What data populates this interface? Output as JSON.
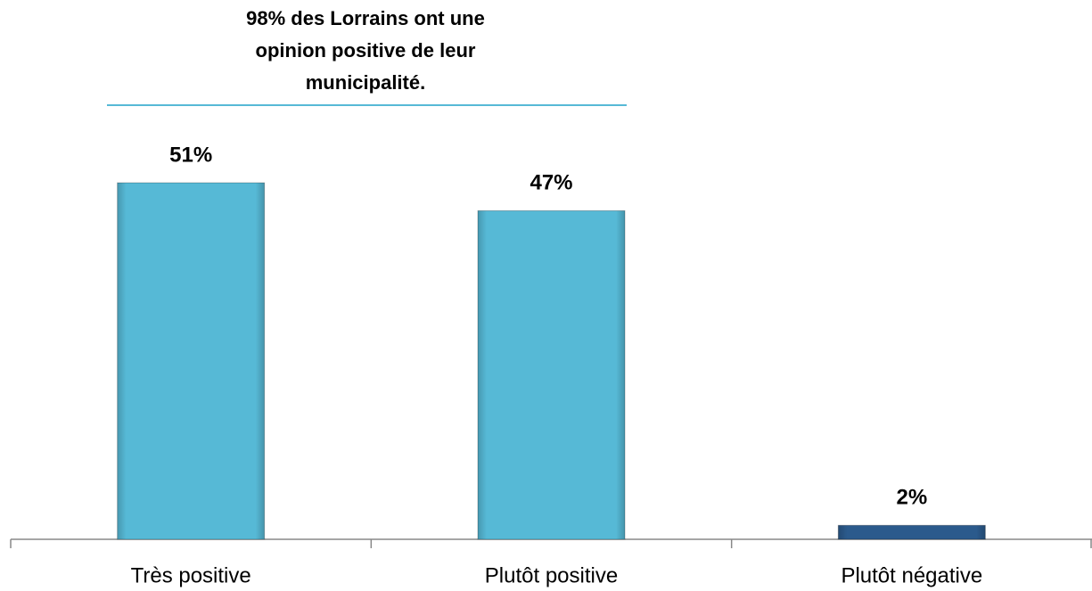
{
  "chart_data": {
    "type": "bar",
    "annotation": [
      "98% des Lorrains ont une",
      "opinion positive de leur",
      "municipalité."
    ],
    "categories": [
      "Très positive",
      "Plutôt positive",
      "Plutôt négative"
    ],
    "values": [
      51,
      47,
      2
    ],
    "value_labels": [
      "51%",
      "47%",
      "2%"
    ],
    "colors": [
      "#56b9d6",
      "#56b9d6",
      "#2b5a8c"
    ]
  }
}
